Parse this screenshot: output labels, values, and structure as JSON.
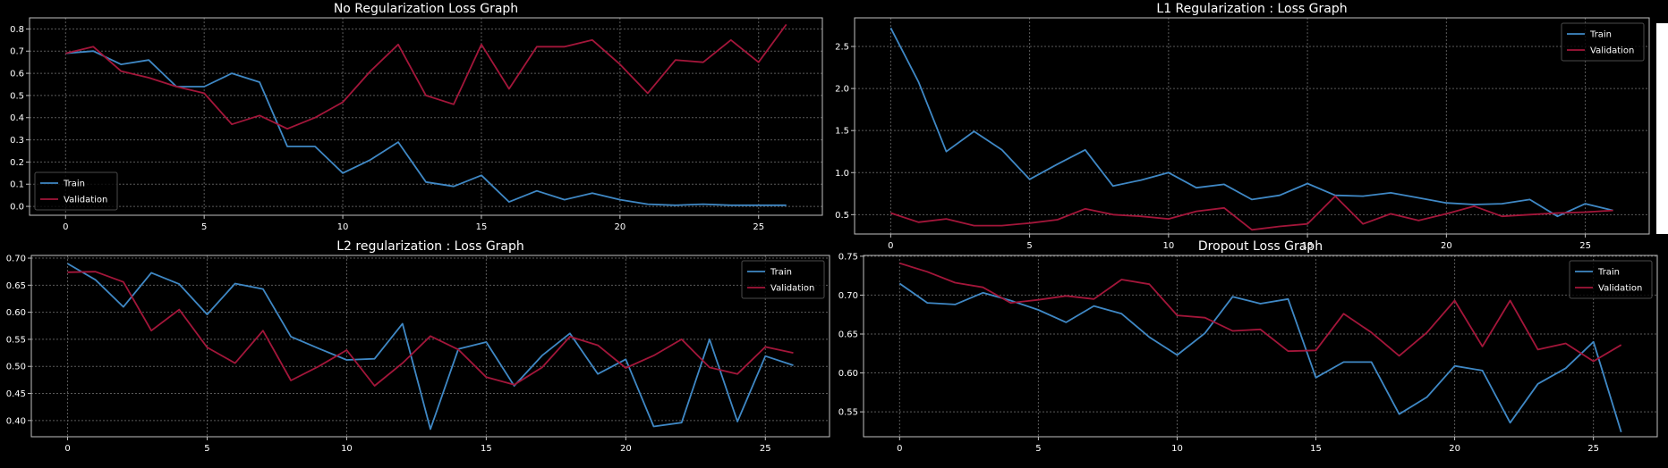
{
  "theme": {
    "background": "#000000",
    "axes_color": "#bfbfbf",
    "grid_color": "#5a5a5a",
    "text_color": "#ffffff",
    "train_color": "#3f88c5",
    "validation_color": "#a3163a"
  },
  "chart_data": [
    {
      "type": "line",
      "title": "No Regularization Loss Graph",
      "xlabel": "",
      "ylabel": "",
      "xlim": [
        -1.3,
        27.3
      ],
      "ylim": [
        -0.04,
        0.85
      ],
      "xticks": [
        0,
        5,
        10,
        15,
        20,
        25
      ],
      "yticks": [
        0.0,
        0.1,
        0.2,
        0.3,
        0.4,
        0.5,
        0.6,
        0.7,
        0.8
      ],
      "ytick_labels": [
        "0.0",
        "0.1",
        "0.2",
        "0.3",
        "0.4",
        "0.5",
        "0.6",
        "0.7",
        "0.8"
      ],
      "grid": true,
      "legend_position": "lower-left",
      "x": [
        0,
        1,
        2,
        3,
        4,
        5,
        6,
        7,
        8,
        9,
        10,
        11,
        12,
        13,
        14,
        15,
        16,
        17,
        18,
        19,
        20,
        21,
        22,
        23,
        24,
        25,
        26
      ],
      "series": [
        {
          "name": "Train",
          "values": [
            0.69,
            0.7,
            0.64,
            0.66,
            0.54,
            0.54,
            0.6,
            0.56,
            0.27,
            0.27,
            0.15,
            0.21,
            0.29,
            0.11,
            0.09,
            0.14,
            0.02,
            0.07,
            0.03,
            0.06,
            0.03,
            0.01,
            0.005,
            0.01,
            0.005,
            0.005,
            0.005
          ]
        },
        {
          "name": "Validation",
          "values": [
            0.69,
            0.72,
            0.61,
            0.58,
            0.54,
            0.51,
            0.37,
            0.41,
            0.35,
            0.4,
            0.47,
            0.61,
            0.73,
            0.5,
            0.46,
            0.73,
            0.53,
            0.72,
            0.72,
            0.75,
            0.64,
            0.51,
            0.66,
            0.65,
            0.75,
            0.65,
            0.82
          ]
        }
      ]
    },
    {
      "type": "line",
      "title": "L1 Regularization : Loss Graph",
      "xlabel": "",
      "ylabel": "",
      "xlim": [
        -1.3,
        27.3
      ],
      "ylim": [
        0.27,
        2.84
      ],
      "xticks": [
        0,
        5,
        10,
        15,
        20,
        25
      ],
      "yticks": [
        0.5,
        1.0,
        1.5,
        2.0,
        2.5
      ],
      "ytick_labels": [
        "0.5",
        "1.0",
        "1.5",
        "2.0",
        "2.5"
      ],
      "grid": true,
      "legend_position": "upper-right",
      "x": [
        0,
        1,
        2,
        3,
        4,
        5,
        6,
        7,
        8,
        9,
        10,
        11,
        12,
        13,
        14,
        15,
        16,
        17,
        18,
        19,
        20,
        21,
        22,
        23,
        24,
        25,
        26
      ],
      "series": [
        {
          "name": "Train",
          "values": [
            2.72,
            2.08,
            1.25,
            1.49,
            1.27,
            0.92,
            1.1,
            1.27,
            0.84,
            0.91,
            1.0,
            0.82,
            0.86,
            0.68,
            0.73,
            0.87,
            0.73,
            0.72,
            0.76,
            0.7,
            0.64,
            0.62,
            0.63,
            0.68,
            0.48,
            0.63,
            0.55
          ]
        },
        {
          "name": "Validation",
          "values": [
            0.52,
            0.41,
            0.45,
            0.37,
            0.37,
            0.4,
            0.44,
            0.57,
            0.5,
            0.48,
            0.45,
            0.54,
            0.58,
            0.32,
            0.36,
            0.39,
            0.72,
            0.39,
            0.51,
            0.43,
            0.51,
            0.6,
            0.48,
            0.5,
            0.52,
            0.53,
            0.55
          ]
        }
      ]
    },
    {
      "type": "line",
      "title": "L2 regularization : Loss Graph",
      "xlabel": "",
      "ylabel": "",
      "xlim": [
        -1.3,
        27.3
      ],
      "ylim": [
        0.37,
        0.705
      ],
      "xticks": [
        0,
        5,
        10,
        15,
        20,
        25
      ],
      "yticks": [
        0.4,
        0.45,
        0.5,
        0.55,
        0.6,
        0.65,
        0.7
      ],
      "ytick_labels": [
        "0.40",
        "0.45",
        "0.50",
        "0.55",
        "0.60",
        "0.65",
        "0.70"
      ],
      "grid": true,
      "legend_position": "upper-right",
      "x": [
        0,
        1,
        2,
        3,
        4,
        5,
        6,
        7,
        8,
        9,
        10,
        11,
        12,
        13,
        14,
        15,
        16,
        17,
        18,
        19,
        20,
        21,
        22,
        23,
        24,
        25,
        26
      ],
      "series": [
        {
          "name": "Train",
          "values": [
            0.69,
            0.66,
            0.61,
            0.673,
            0.652,
            0.596,
            0.653,
            0.643,
            0.555,
            0.533,
            0.512,
            0.514,
            0.579,
            0.384,
            0.532,
            0.545,
            0.464,
            0.52,
            0.561,
            0.486,
            0.513,
            0.389,
            0.396,
            0.55,
            0.398,
            0.519,
            0.502
          ]
        },
        {
          "name": "Validation",
          "values": [
            0.674,
            0.675,
            0.656,
            0.566,
            0.605,
            0.535,
            0.506,
            0.566,
            0.474,
            0.5,
            0.53,
            0.464,
            0.506,
            0.556,
            0.531,
            0.48,
            0.466,
            0.498,
            0.555,
            0.539,
            0.497,
            0.52,
            0.55,
            0.498,
            0.486,
            0.536,
            0.525
          ]
        }
      ]
    },
    {
      "type": "line",
      "title": "Dropout Loss Graph",
      "xlabel": "",
      "ylabel": "",
      "xlim": [
        -1.3,
        27.3
      ],
      "ylim": [
        0.518,
        0.751
      ],
      "xticks": [
        0,
        5,
        10,
        15,
        20,
        25
      ],
      "yticks": [
        0.55,
        0.6,
        0.65,
        0.7,
        0.75
      ],
      "ytick_labels": [
        "0.55",
        "0.60",
        "0.65",
        "0.70",
        "0.75"
      ],
      "grid": true,
      "legend_position": "upper-right",
      "x": [
        0,
        1,
        2,
        3,
        4,
        5,
        6,
        7,
        8,
        9,
        10,
        11,
        12,
        13,
        14,
        15,
        16,
        17,
        18,
        19,
        20,
        21,
        22,
        23,
        24,
        25,
        26
      ],
      "series": [
        {
          "name": "Train",
          "values": [
            0.715,
            0.69,
            0.688,
            0.703,
            0.693,
            0.681,
            0.665,
            0.686,
            0.676,
            0.646,
            0.623,
            0.651,
            0.698,
            0.689,
            0.695,
            0.594,
            0.614,
            0.614,
            0.547,
            0.569,
            0.609,
            0.603,
            0.536,
            0.586,
            0.606,
            0.64,
            0.524
          ]
        },
        {
          "name": "Validation",
          "values": [
            0.741,
            0.73,
            0.716,
            0.71,
            0.69,
            0.694,
            0.699,
            0.695,
            0.72,
            0.714,
            0.674,
            0.671,
            0.654,
            0.656,
            0.628,
            0.629,
            0.676,
            0.652,
            0.622,
            0.652,
            0.693,
            0.634,
            0.693,
            0.63,
            0.638,
            0.615,
            0.636
          ]
        }
      ]
    }
  ]
}
